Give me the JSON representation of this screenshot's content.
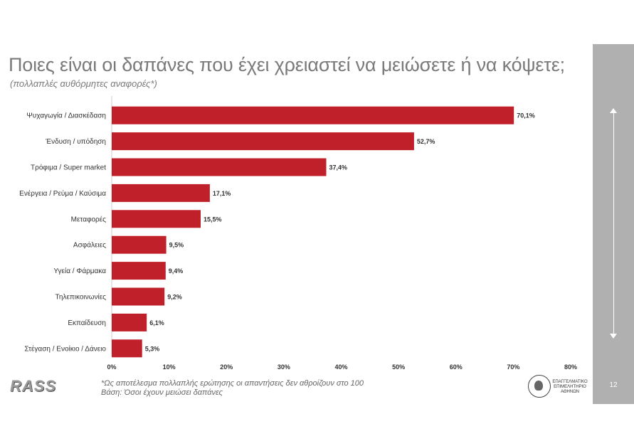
{
  "title": "Ποιες είναι οι δαπάνες που έχει χρειαστεί να μειώσετε ή να κόψετε;",
  "subtitle": "(πολλαπλές αυθόρμητες αναφορές*)",
  "footnote_line1": "*Ως αποτέλεσμα πολλαπλής ερώτησης οι απαντήσεις δεν αθροίζουν στο 100",
  "footnote_line2": "Βάση: Όσοι έχουν μειώσει δαπάνες",
  "logo_left": "RASS",
  "logo_right": "ΕΠΑΓΓΕΛΜΑΤΙΚΟ ΕΠΙΜΕΛΗΤΗΡΙΟ ΑΘΗΝΩΝ",
  "logo_right_line1": "ΕΠΑΓΓΕΛΜΑΤΙΚΟ",
  "logo_right_line2": "ΕΠΙΜΕΛΗΤΗΡΙΟ",
  "logo_right_line3": "ΑΘΗΝΩΝ",
  "slide_number": "12",
  "colors": {
    "bar": "#c0202a",
    "sidebar": "#b0b0b0",
    "title": "#7a7a7a"
  },
  "chart_data": {
    "type": "bar",
    "orientation": "horizontal",
    "categories": [
      "Ψυχαγωγία / Διασκέδαση",
      "Ένδυση / υπόδηση",
      "Τρόφιμα / Super market",
      "Ενέργεια / Ρεύμα / Καύσιμα",
      "Μεταφορές",
      "Ασφάλειες",
      "Υγεία / Φάρμακα",
      "Τηλεπικοινωνίες",
      "Εκπαίδευση",
      "Στέγαση / Ενοίκιο / Δάνειο"
    ],
    "values": [
      70.1,
      52.7,
      37.4,
      17.1,
      15.5,
      9.5,
      9.4,
      9.2,
      6.1,
      5.3
    ],
    "value_labels": [
      "70,1%",
      "52,7%",
      "37,4%",
      "17,1%",
      "15,5%",
      "9,5%",
      "9,4%",
      "9,2%",
      "6,1%",
      "5,3%"
    ],
    "xlim": [
      0,
      80
    ],
    "xticks": [
      0,
      10,
      20,
      30,
      40,
      50,
      60,
      70,
      80
    ],
    "xtick_labels": [
      "0%",
      "10%",
      "20%",
      "30%",
      "40%",
      "50%",
      "60%",
      "70%",
      "80%"
    ],
    "grid": false,
    "legend": "none"
  }
}
